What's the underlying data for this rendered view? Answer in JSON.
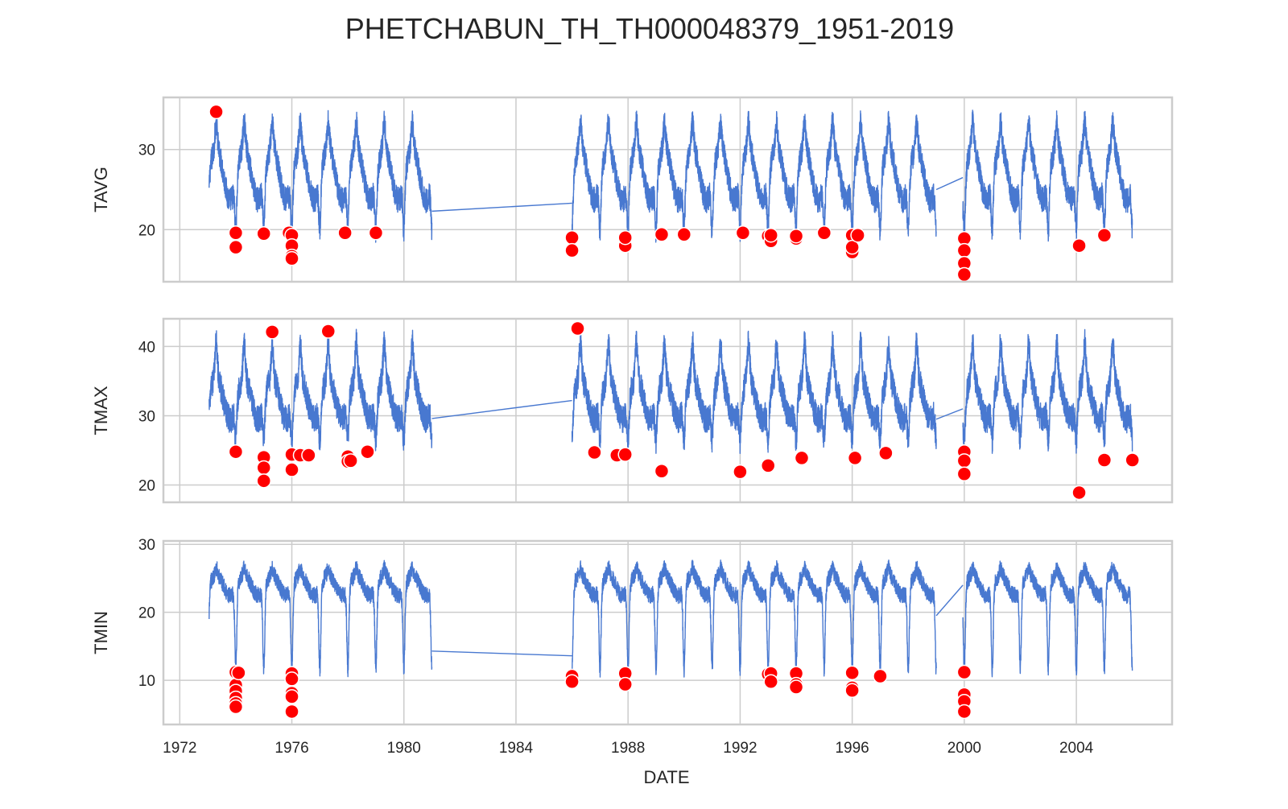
{
  "chart_data": {
    "type": "line",
    "title": "PHETCHABUN_TH_TH000048379_1951-2019",
    "xlabel": "DATE",
    "x_ticks": [
      "1972",
      "1976",
      "1980",
      "1984",
      "1988",
      "1992",
      "1996",
      "2000",
      "2004"
    ],
    "xlim": [
      "1971-06",
      "2007-06"
    ],
    "grid": true,
    "colors": {
      "line": "#4878d0",
      "outlier": "#ff0000",
      "grid": "#cccccc",
      "frame": "#cccccc"
    },
    "segments": [
      {
        "start": 1973.05,
        "end": 1981.0
      },
      {
        "start": 1986.0,
        "end": 1999.0
      },
      {
        "start": 1999.95,
        "end": 2006.0
      }
    ],
    "panels": [
      {
        "ylabel": "TAVG",
        "ylim": [
          13.5,
          36.5
        ],
        "yticks": [
          20,
          30
        ],
        "series": {
          "baseline": 27,
          "amplitude": 3.3,
          "noise": 1.6,
          "winter_dip": 6,
          "peak_spike": 3,
          "connectors": [
            [
              1981.0,
              22.3,
              1986.0,
              23.3
            ],
            [
              1999.0,
              25.0,
              1999.95,
              26.5
            ]
          ]
        },
        "outliers": [
          [
            1973.3,
            34.7
          ],
          [
            1974.0,
            19.6
          ],
          [
            1974.0,
            17.8
          ],
          [
            1975.0,
            19.5
          ],
          [
            1975.9,
            19.6
          ],
          [
            1976.0,
            19.3
          ],
          [
            1976.0,
            18.0
          ],
          [
            1976.0,
            16.7
          ],
          [
            1976.0,
            16.4
          ],
          [
            1977.9,
            19.6
          ],
          [
            1979.0,
            19.6
          ],
          [
            1986.0,
            19.0
          ],
          [
            1986.0,
            17.4
          ],
          [
            1987.9,
            18.0
          ],
          [
            1987.9,
            19.0
          ],
          [
            1989.2,
            19.4
          ],
          [
            1990.0,
            19.4
          ],
          [
            1992.1,
            19.6
          ],
          [
            1993.0,
            19.2
          ],
          [
            1993.1,
            18.6
          ],
          [
            1993.1,
            19.3
          ],
          [
            1994.0,
            18.9
          ],
          [
            1994.0,
            19.2
          ],
          [
            1995.0,
            19.6
          ],
          [
            1996.0,
            19.3
          ],
          [
            1996.0,
            17.2
          ],
          [
            1996.0,
            17.8
          ],
          [
            1996.2,
            19.3
          ],
          [
            2000.0,
            18.9
          ],
          [
            2000.0,
            17.4
          ],
          [
            2000.0,
            15.8
          ],
          [
            2000.0,
            14.4
          ],
          [
            2004.1,
            18.0
          ],
          [
            2005.0,
            19.3
          ]
        ]
      },
      {
        "ylabel": "TMAX",
        "ylim": [
          17.5,
          44.0
        ],
        "yticks": [
          20,
          30,
          40
        ],
        "series": {
          "baseline": 32.5,
          "amplitude": 3.0,
          "noise": 2.0,
          "winter_dip": 5,
          "peak_spike": 5,
          "connectors": [
            [
              1981.0,
              29.6,
              1986.0,
              32.2
            ],
            [
              1999.0,
              29.5,
              1999.95,
              31.0
            ]
          ]
        },
        "outliers": [
          [
            1974.0,
            24.8
          ],
          [
            1975.0,
            24.0
          ],
          [
            1975.0,
            22.5
          ],
          [
            1975.0,
            20.6
          ],
          [
            1975.3,
            42.1
          ],
          [
            1976.0,
            24.4
          ],
          [
            1976.0,
            22.2
          ],
          [
            1976.3,
            24.3
          ],
          [
            1976.6,
            24.3
          ],
          [
            1977.3,
            42.2
          ],
          [
            1978.0,
            24.1
          ],
          [
            1978.0,
            23.4
          ],
          [
            1978.1,
            23.5
          ],
          [
            1978.7,
            24.8
          ],
          [
            1986.2,
            42.6
          ],
          [
            1986.8,
            24.7
          ],
          [
            1987.6,
            24.3
          ],
          [
            1987.9,
            24.4
          ],
          [
            1989.2,
            22.0
          ],
          [
            1992.0,
            21.9
          ],
          [
            1993.0,
            22.8
          ],
          [
            1994.2,
            23.9
          ],
          [
            1996.1,
            23.9
          ],
          [
            1997.2,
            24.6
          ],
          [
            2000.0,
            24.8
          ],
          [
            2000.0,
            23.5
          ],
          [
            2000.0,
            21.6
          ],
          [
            2004.1,
            18.9
          ],
          [
            2005.0,
            23.6
          ],
          [
            2006.0,
            23.6
          ]
        ]
      },
      {
        "ylabel": "TMIN",
        "ylim": [
          3.5,
          30.5
        ],
        "yticks": [
          10,
          20,
          30
        ],
        "series": {
          "baseline": 24,
          "amplitude": 1.5,
          "noise": 1.2,
          "winter_dip": 12,
          "peak_spike": 1,
          "connectors": [
            [
              1981.0,
              14.3,
              1986.0,
              13.6
            ],
            [
              1999.0,
              19.5,
              1999.95,
              24.0
            ]
          ]
        },
        "outliers": [
          [
            1974.0,
            11.2
          ],
          [
            1974.0,
            9.3
          ],
          [
            1974.0,
            8.4
          ],
          [
            1974.0,
            7.4
          ],
          [
            1974.0,
            6.6
          ],
          [
            1974.0,
            6.1
          ],
          [
            1974.1,
            11.1
          ],
          [
            1976.0,
            11.0
          ],
          [
            1976.0,
            10.2
          ],
          [
            1976.0,
            8.1
          ],
          [
            1976.0,
            7.6
          ],
          [
            1976.0,
            5.4
          ],
          [
            1986.0,
            10.6
          ],
          [
            1986.0,
            9.8
          ],
          [
            1987.9,
            11.0
          ],
          [
            1987.9,
            9.4
          ],
          [
            1993.0,
            10.9
          ],
          [
            1993.1,
            11.0
          ],
          [
            1993.1,
            9.8
          ],
          [
            1994.0,
            11.0
          ],
          [
            1994.0,
            9.4
          ],
          [
            1994.0,
            9.0
          ],
          [
            1996.0,
            11.1
          ],
          [
            1996.0,
            8.9
          ],
          [
            1996.0,
            8.5
          ],
          [
            1997.0,
            10.6
          ],
          [
            2000.0,
            11.2
          ],
          [
            2000.0,
            7.9
          ],
          [
            2000.0,
            6.9
          ],
          [
            2000.0,
            5.4
          ]
        ]
      }
    ]
  }
}
